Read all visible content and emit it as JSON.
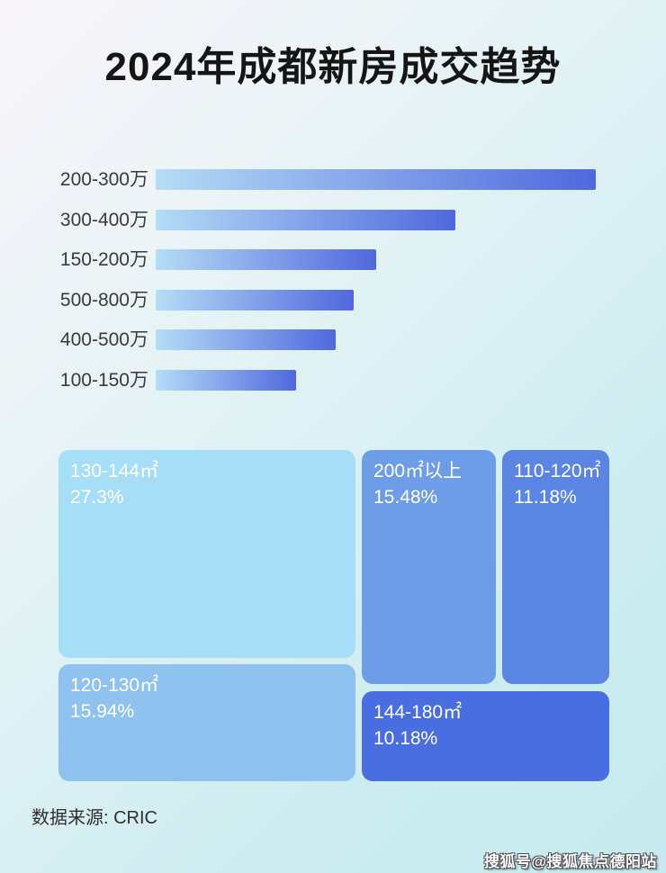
{
  "title": "2024年成都新房成交趋势",
  "colors": {
    "bar_gradient_start": "#b4ddf5",
    "bar_gradient_end": "#4f68dd",
    "title_color": "#151515",
    "background_top_left": "#f8f5fb",
    "background_cyan": "#c6eaef"
  },
  "chart_data": [
    {
      "type": "bar",
      "orientation": "horizontal",
      "categories": [
        "200-300万",
        "300-400万",
        "150-200万",
        "500-800万",
        "400-500万",
        "100-150万"
      ],
      "values": [
        100,
        68,
        50,
        45,
        41,
        32
      ],
      "values_note": "bars carry no numeric labels; values are relative lengths as % of the longest bar",
      "xlabel": "",
      "ylabel": "",
      "grid": false,
      "legend": false
    },
    {
      "type": "treemap",
      "items": [
        {
          "label": "130-144㎡",
          "pct": 27.3,
          "display": "27.3%",
          "color": "#a6def8"
        },
        {
          "label": "200㎡以上",
          "pct": 15.48,
          "display": "15.48%",
          "color": "#6e9de7"
        },
        {
          "label": "110-120㎡",
          "pct": 11.18,
          "display": "11.18%",
          "color": "#5b85e3"
        },
        {
          "label": "120-130㎡",
          "pct": 15.94,
          "display": "15.94%",
          "color": "#8fc2ef"
        },
        {
          "label": "144-180㎡",
          "pct": 10.18,
          "display": "10.18%",
          "color": "#4a6de0"
        }
      ],
      "legend": false
    }
  ],
  "footer": {
    "source_label": "数据来源: CRIC"
  },
  "watermark": "搜狐号@搜狐焦点德阳站"
}
